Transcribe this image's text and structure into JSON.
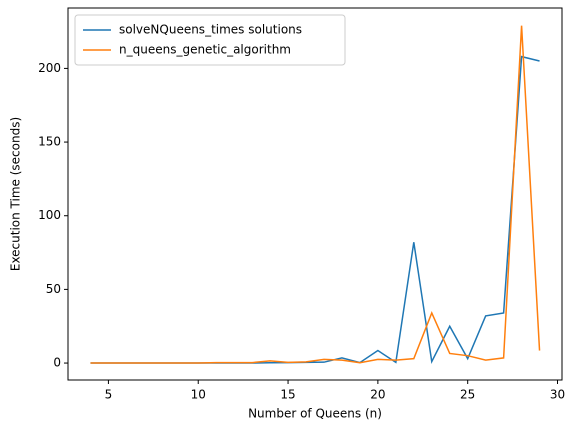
{
  "chart_data": {
    "type": "line",
    "x_label": "Number of Queens (n)",
    "y_label": "Execution Time (seconds)",
    "x": [
      4,
      5,
      6,
      7,
      8,
      9,
      10,
      11,
      12,
      13,
      14,
      15,
      16,
      17,
      18,
      19,
      20,
      21,
      22,
      23,
      24,
      25,
      26,
      27,
      28,
      29
    ],
    "series": [
      {
        "name": "solveNQueens_times solutions",
        "color": "#1f77b4",
        "values": [
          0,
          0,
          0,
          0,
          0,
          0,
          0,
          0,
          0,
          0,
          0.2,
          0.3,
          0.5,
          0.6,
          3.5,
          0.3,
          8.5,
          0.5,
          82,
          1,
          25,
          3,
          32,
          34,
          208,
          205
        ]
      },
      {
        "name": "n_queens_genetic_algorithm",
        "color": "#ff7f0e",
        "values": [
          0,
          0,
          0,
          0,
          0,
          0,
          0,
          0.3,
          0.3,
          0.3,
          1.5,
          0.5,
          0.8,
          2.5,
          2,
          0.2,
          2.5,
          2,
          3,
          34,
          6.5,
          5,
          2,
          3.5,
          229,
          8.5
        ]
      }
    ],
    "xlim": [
      2.75,
      30.25
    ],
    "xticks": [
      5,
      10,
      15,
      20,
      25,
      30
    ],
    "ylim": [
      -11.5,
      241
    ],
    "yticks": [
      0,
      50,
      100,
      150,
      200
    ],
    "grid": false,
    "legend": "upper-left"
  }
}
